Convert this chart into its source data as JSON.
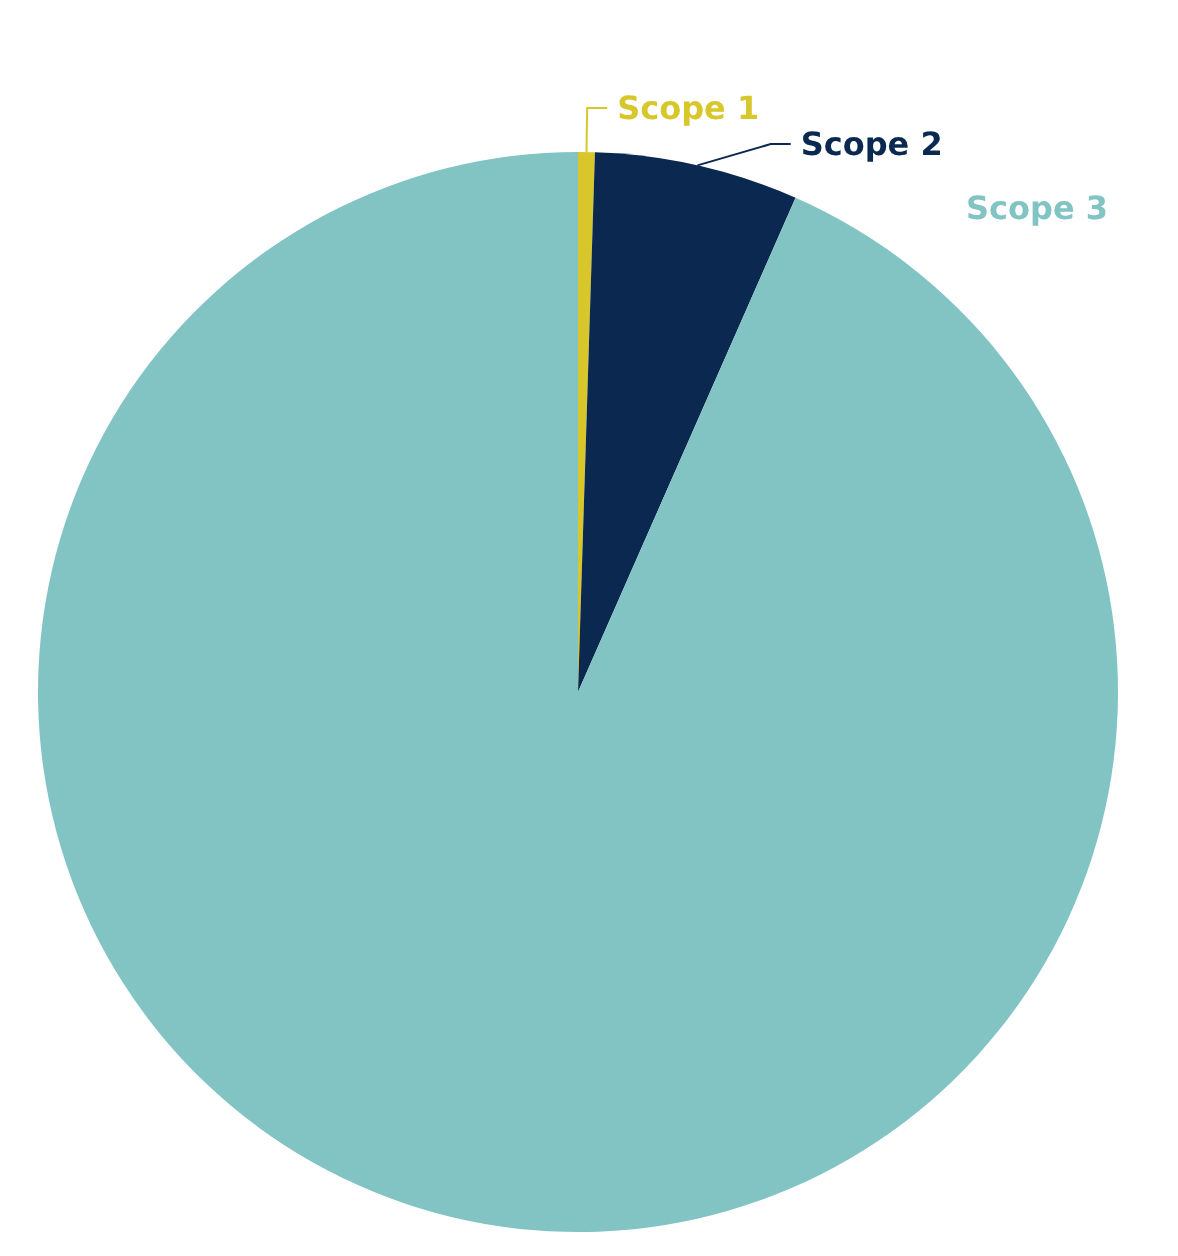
{
  "chart_data": {
    "type": "pie",
    "categories": [
      "Scope 1",
      "Scope 2",
      "Scope 3"
    ],
    "values": [
      0.5,
      6.1,
      93.4
    ],
    "colors": [
      "#d8c72b",
      "#0a2850",
      "#82c4c3"
    ]
  }
}
